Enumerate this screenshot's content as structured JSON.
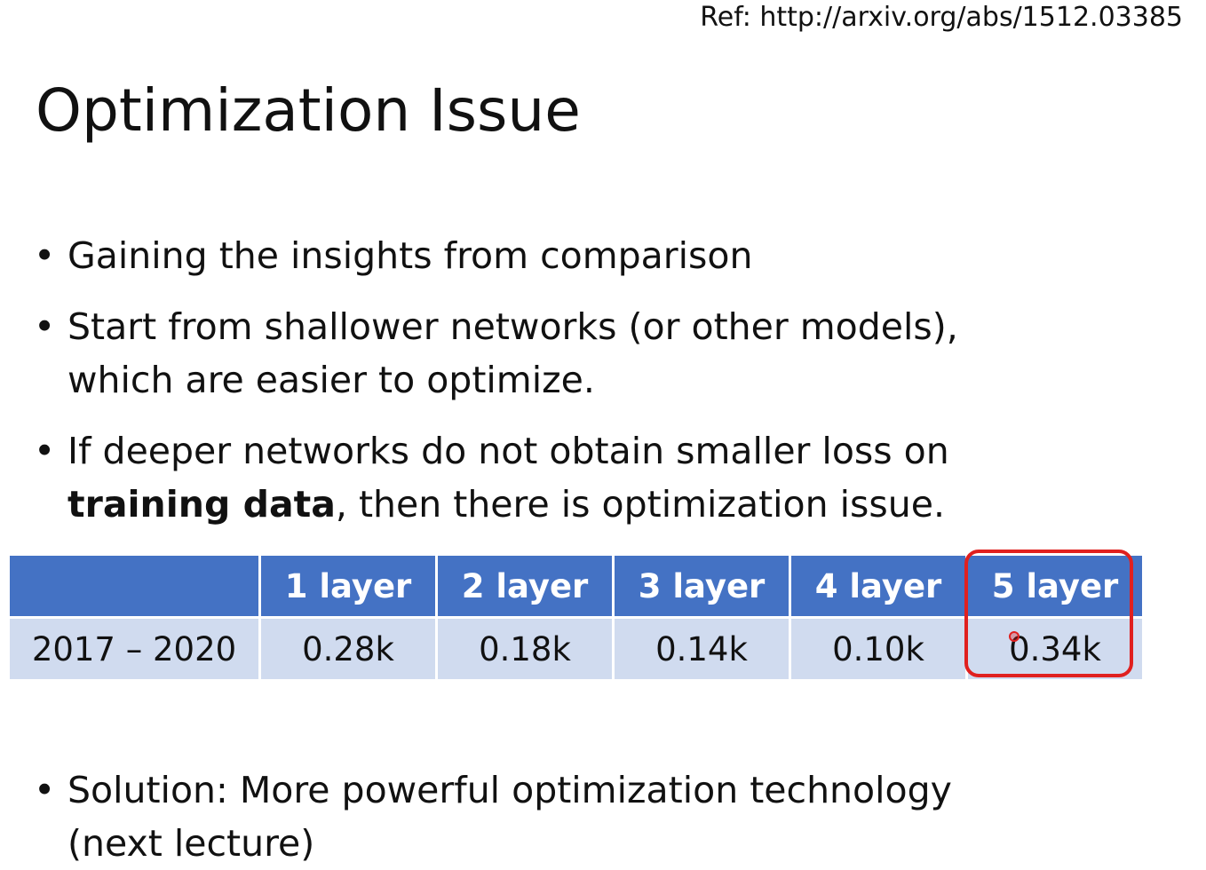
{
  "slide": {
    "ref": "Ref: http://arxiv.org/abs/1512.03385",
    "title": "Optimization Issue",
    "bullet_char": "•",
    "bullets": [
      {
        "text": "Gaining the insights from comparison"
      },
      {
        "line1": "Start from shallower networks (or other models),",
        "line2": "which are easier to optimize."
      },
      {
        "line1": "If deeper networks do not obtain smaller loss on",
        "bold": "training data",
        "rest": ",  then there is optimization issue."
      }
    ],
    "solution": {
      "line1": "Solution: More powerful optimization technology",
      "line2": "(next lecture)"
    }
  },
  "table": {
    "headers": [
      "",
      "1 layer",
      "2 layer",
      "3 layer",
      "4 layer",
      "5 layer"
    ],
    "rows": [
      [
        "2017 – 2020",
        "0.28k",
        "0.18k",
        "0.14k",
        "0.10k",
        "0.34k"
      ]
    ]
  },
  "annotations": {
    "highlight_color": "#e0201f",
    "highlighted_column": "5 layer"
  },
  "colors": {
    "header_bg": "#4472c4",
    "row_bg": "#d0dbef",
    "text": "#111111"
  }
}
